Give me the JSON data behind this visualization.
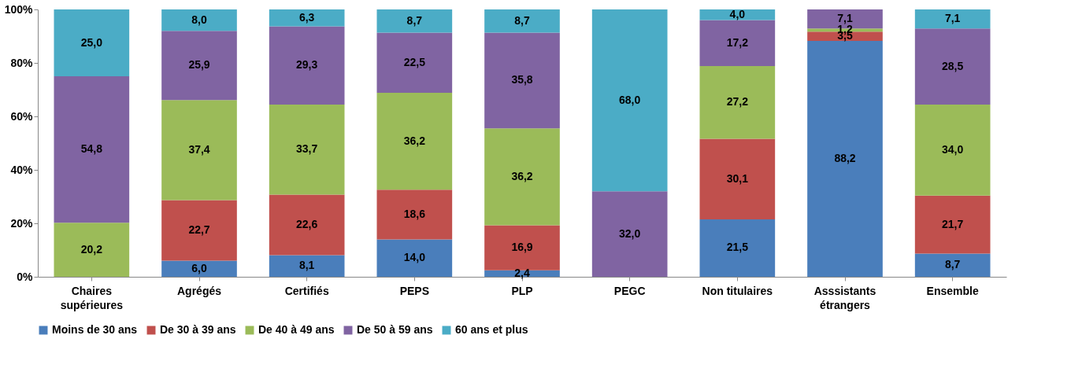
{
  "chart_data": {
    "type": "bar",
    "stacked": true,
    "categories": [
      "Chaires supérieures",
      "Agrégés",
      "Certifiés",
      "PEPS",
      "PLP",
      "PEGC",
      "Non titulaires",
      "Asssistants étrangers",
      "Ensemble"
    ],
    "series": [
      {
        "name": "Moins de 30 ans",
        "color": "#4a7ebb",
        "values": [
          null,
          6.0,
          8.1,
          14.0,
          2.4,
          null,
          21.5,
          88.2,
          8.7
        ],
        "value_labels": [
          null,
          "6,0",
          "8,1",
          "14,0",
          "2,4",
          null,
          "21,5",
          "88,2",
          "8,7"
        ]
      },
      {
        "name": "De 30 à 39 ans",
        "color": "#c0504d",
        "values": [
          null,
          22.7,
          22.6,
          18.6,
          16.9,
          null,
          30.1,
          3.5,
          21.7
        ],
        "value_labels": [
          null,
          "22,7",
          "22,6",
          "18,6",
          "16,9",
          null,
          "30,1",
          "3,5",
          "21,7"
        ]
      },
      {
        "name": "De 40 à 49 ans",
        "color": "#9bbb59",
        "values": [
          20.2,
          37.4,
          33.7,
          36.2,
          36.2,
          null,
          27.2,
          1.2,
          34.0
        ],
        "value_labels": [
          "20,2",
          "37,4",
          "33,7",
          "36,2",
          "36,2",
          null,
          "27,2",
          "1,2",
          "34,0"
        ]
      },
      {
        "name": "De 50 à 59 ans",
        "color": "#8064a2",
        "values": [
          54.8,
          25.9,
          29.3,
          22.5,
          35.8,
          32.0,
          17.2,
          7.1,
          28.5
        ],
        "value_labels": [
          "54,8",
          "25,9",
          "29,3",
          "22,5",
          "35,8",
          "32,0",
          "17,2",
          "7,1",
          "28,5"
        ]
      },
      {
        "name": "60 ans et plus",
        "color": "#4bacc6",
        "values": [
          25.0,
          8.0,
          6.3,
          8.7,
          8.7,
          68.0,
          4.0,
          null,
          7.1
        ],
        "value_labels": [
          "25,0",
          "8,0",
          "6,3",
          "8,7",
          "8,7",
          "68,0",
          "4,0",
          null,
          "7,1"
        ]
      }
    ],
    "ylim": [
      0,
      100
    ],
    "yticks": [
      {
        "value": 0,
        "label": "0%"
      },
      {
        "value": 20,
        "label": "20%"
      },
      {
        "value": 40,
        "label": "40%"
      },
      {
        "value": 60,
        "label": "60%"
      },
      {
        "value": 80,
        "label": "80%"
      },
      {
        "value": 100,
        "label": "100%"
      }
    ],
    "grid": false,
    "legend": "bottom"
  }
}
